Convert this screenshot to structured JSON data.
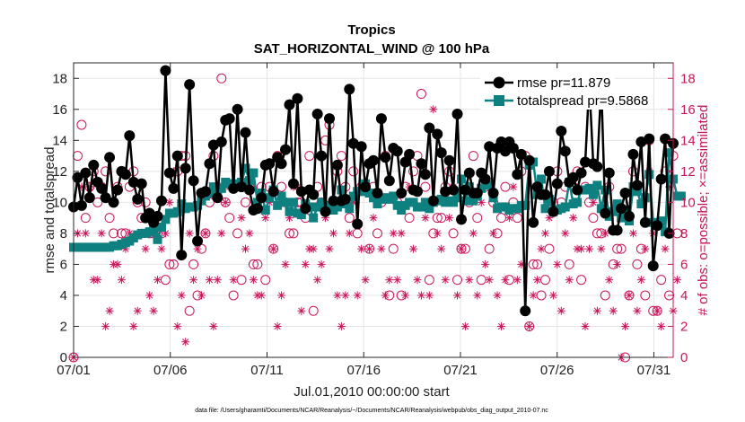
{
  "chart_data": {
    "type": "line",
    "title": "Tropics",
    "subtitle": "SAT_HORIZONTAL_WIND @ 100 hPa",
    "xlabel": "Jul.01,2010 00:00:00 start",
    "ylabel": "rmse and totalspread",
    "ylabel_right": "# of obs: o=possible; ×=assimilated",
    "xlim": [
      1,
      32
    ],
    "ylim": [
      0,
      19
    ],
    "ylim_right": [
      0,
      19
    ],
    "x_ticks": [
      1,
      6,
      11,
      16,
      21,
      26,
      31
    ],
    "x_tick_labels": [
      "07/01",
      "07/06",
      "07/11",
      "07/16",
      "07/21",
      "07/26",
      "07/31"
    ],
    "y_ticks": [
      0,
      2,
      4,
      6,
      8,
      10,
      12,
      14,
      16,
      18
    ],
    "y_tick_labels": [
      "0",
      "2",
      "4",
      "6",
      "8",
      "10",
      "12",
      "14",
      "16",
      "18"
    ],
    "y_ticks_right": [
      0,
      2,
      4,
      6,
      8,
      10,
      12,
      14,
      16,
      18
    ],
    "y_tick_labels_right": [
      "0",
      "2",
      "4",
      "6",
      "8",
      "10",
      "12",
      "14",
      "16",
      "18"
    ],
    "grid": true,
    "legend_position": "top-right",
    "colors": {
      "rmse": "#000000",
      "spread": "#0f8080",
      "obs": "#c8145a"
    },
    "series": [
      {
        "name": "rmse pr=11.879",
        "marker": "circle",
        "values": [
          9.7,
          11.6,
          9.8,
          11.9,
          10.3,
          12.4,
          11.3,
          10.9,
          10.3,
          12.9,
          10.0,
          10.8,
          12.0,
          11.8,
          14.3,
          11.3,
          10.2,
          11.2,
          9.0,
          9.3,
          8.7,
          9.1,
          10.1,
          18.5,
          11.9,
          10.9,
          13.0,
          6.6,
          12.2,
          17.6,
          11.4,
          7.5,
          10.6,
          10.7,
          12.5,
          13.7,
          10.3,
          13.9,
          15.3,
          15.4,
          10.9,
          16.0,
          11.0,
          14.5,
          10.8,
          9.5,
          9.6,
          10.3,
          12.4,
          12.5,
          10.7,
          12.9,
          12.5,
          13.4,
          16.3,
          11.2,
          16.7,
          10.7,
          9.6,
          10.8,
          10.5,
          15.7,
          13.0,
          9.4,
          15.4,
          10.1,
          12.4,
          10.1,
          10.2,
          17.3,
          13.8,
          8.6,
          13.6,
          11.0,
          12.5,
          12.7,
          10.6,
          15.4,
          12.9,
          11.4,
          13.5,
          13.3,
          10.6,
          12.6,
          13.1,
          10.8,
          10.7,
          12.5,
          11.8,
          14.8,
          10.1,
          14.4,
          13.2,
          10.7,
          12.7,
          10.8,
          15.7,
          8.9,
          10.8,
          11.9,
          10.6,
          10.6,
          11.9,
          11.5,
          13.6,
          10.6,
          13.5,
          13.9,
          13.3,
          13.9,
          13.5,
          11.8,
          13.1,
          3.0,
          12.7,
          8.7,
          11.0,
          10.5,
          10.5,
          12.0,
          9.4,
          11.2,
          14.6,
          13.3,
          11.3,
          11.6,
          10.8,
          11.9,
          12.6,
          17.7,
          12.5,
          12.3,
          17.6,
          9.3,
          11.9,
          8.2,
          8.2,
          9.6,
          10.6,
          9.1,
          13.1,
          11.1,
          13.9,
          8.7,
          14.1,
          5.9,
          8.5,
          11.5,
          14.1,
          8.0,
          13.8
        ]
      },
      {
        "name": "totalspread pr=9.5868",
        "marker": "square",
        "values": [
          7.1,
          7.1,
          7.1,
          7.1,
          7.1,
          7.1,
          7.1,
          7.1,
          7.1,
          7.1,
          7.2,
          7.2,
          7.3,
          7.4,
          7.5,
          7.7,
          7.9,
          8.0,
          8.0,
          8.1,
          8.2,
          7.6,
          8.4,
          8.9,
          9.3,
          9.3,
          9.4,
          9.9,
          9.6,
          9.7,
          9.7,
          9.8,
          10.1,
          10.4,
          10.6,
          11.0,
          10.8,
          10.9,
          11.3,
          11.2,
          11.2,
          11.0,
          11.3,
          12.2,
          11.4,
          11.9,
          10.0,
          10.6,
          9.5,
          10.3,
          10.8,
          9.8,
          10.4,
          10.0,
          9.4,
          10.0,
          9.3,
          9.2,
          9.9,
          9.7,
          9.0,
          9.7,
          10.0,
          9.5,
          9.8,
          9.5,
          9.7,
          10.8,
          9.9,
          9.6,
          10.4,
          10.7,
          10.7,
          11.2,
          10.6,
          10.3,
          9.9,
          10.2,
          10.3,
          10.2,
          10.4,
          9.8,
          9.5,
          9.8,
          10.0,
          10.0,
          9.7,
          9.7,
          10.0,
          9.6,
          10.0,
          10.1,
          10.2,
          10.0,
          10.1,
          10.0,
          10.3,
          11.5,
          10.1,
          11.0,
          10.1,
          10.4,
          10.9,
          11.2,
          11.1,
          10.3,
          9.6,
          9.7,
          9.7,
          9.5,
          9.6,
          9.6,
          9.8,
          9.8,
          12.4,
          12.6,
          10.5,
          11.5,
          9.6,
          10.2,
          9.4,
          9.5,
          9.6,
          9.7,
          11.3,
          9.9,
          10.0,
          10.8,
          10.8,
          10.9,
          10.5,
          11.1,
          9.6,
          10.8,
          9.1,
          9.4,
          9.9,
          9.0,
          9.5,
          8.8,
          11.0,
          10.7,
          9.9,
          10.3,
          11.8,
          8.7,
          8.6,
          8.8,
          8.1,
          13.2,
          11.5,
          10.4,
          10.4
        ]
      }
    ],
    "obs_possible": [
      0,
      13,
      15,
      9,
      11,
      12,
      10,
      11,
      12,
      9,
      8,
      11,
      8,
      8,
      11,
      12,
      10,
      9,
      10,
      8,
      8,
      8,
      8,
      5,
      6,
      6,
      12,
      13,
      13,
      3,
      6,
      4,
      7,
      8,
      10,
      13,
      11,
      18,
      10,
      9,
      4,
      8,
      5,
      10,
      11,
      6,
      6,
      11,
      5,
      11,
      7,
      13,
      11,
      10,
      8,
      8,
      10,
      10,
      9,
      13,
      3,
      11,
      10,
      14,
      15,
      10,
      12,
      13,
      11,
      9,
      12,
      8,
      11,
      11,
      7,
      11,
      8,
      10,
      13,
      4,
      7,
      10,
      4,
      11,
      9,
      12,
      13,
      17,
      11,
      5,
      8,
      9,
      9,
      11,
      12,
      8,
      5,
      7,
      7,
      10,
      13,
      9,
      5,
      11,
      7,
      10,
      8,
      9,
      11,
      5,
      10,
      9,
      12,
      13,
      2,
      6,
      6,
      4,
      5,
      7,
      10,
      12,
      10,
      11,
      6,
      11,
      12,
      5,
      11,
      10,
      9,
      8,
      8,
      4,
      11,
      6,
      7,
      7,
      0,
      4,
      12,
      6,
      7,
      4,
      14,
      3,
      3,
      5,
      12,
      4,
      13,
      8
    ],
    "obs_assimilated": [
      0,
      8,
      11,
      8,
      11,
      5,
      5,
      8,
      2,
      3,
      6,
      6,
      5,
      7,
      8,
      2,
      3,
      8,
      7,
      4,
      3,
      5,
      7,
      8,
      10,
      12,
      2,
      4,
      1,
      8,
      5,
      7,
      4,
      8,
      5,
      2,
      5,
      8,
      10,
      11,
      5,
      11,
      9,
      7,
      8,
      5,
      4,
      4,
      9,
      10,
      7,
      2,
      4,
      6,
      9,
      11,
      11,
      3,
      6,
      7,
      7,
      5,
      6,
      9,
      7,
      8,
      4,
      2,
      4,
      8,
      10,
      4,
      7,
      5,
      7,
      9,
      10,
      7,
      4,
      5,
      8,
      5,
      8,
      4,
      11,
      7,
      5,
      4,
      9,
      4,
      16,
      8,
      7,
      5,
      9,
      11,
      4,
      7,
      2,
      5,
      8,
      4,
      10,
      6,
      5,
      8,
      4,
      2,
      5,
      9,
      11,
      5,
      6,
      3,
      2,
      4,
      5,
      7,
      8,
      9,
      4,
      6,
      3,
      8,
      5,
      9,
      7,
      7,
      2,
      7,
      10,
      3,
      7,
      8,
      5,
      3,
      6,
      0,
      2,
      4,
      8,
      3,
      5,
      7,
      12,
      8,
      3,
      2,
      7,
      11,
      3,
      5
    ]
  },
  "footer": "data file: /Users/gharamti/Documents/NCAR/Reanalysis/~/Documents/NCAR/Reanalysis/webpub/obs_diag_output_2010-07.nc"
}
